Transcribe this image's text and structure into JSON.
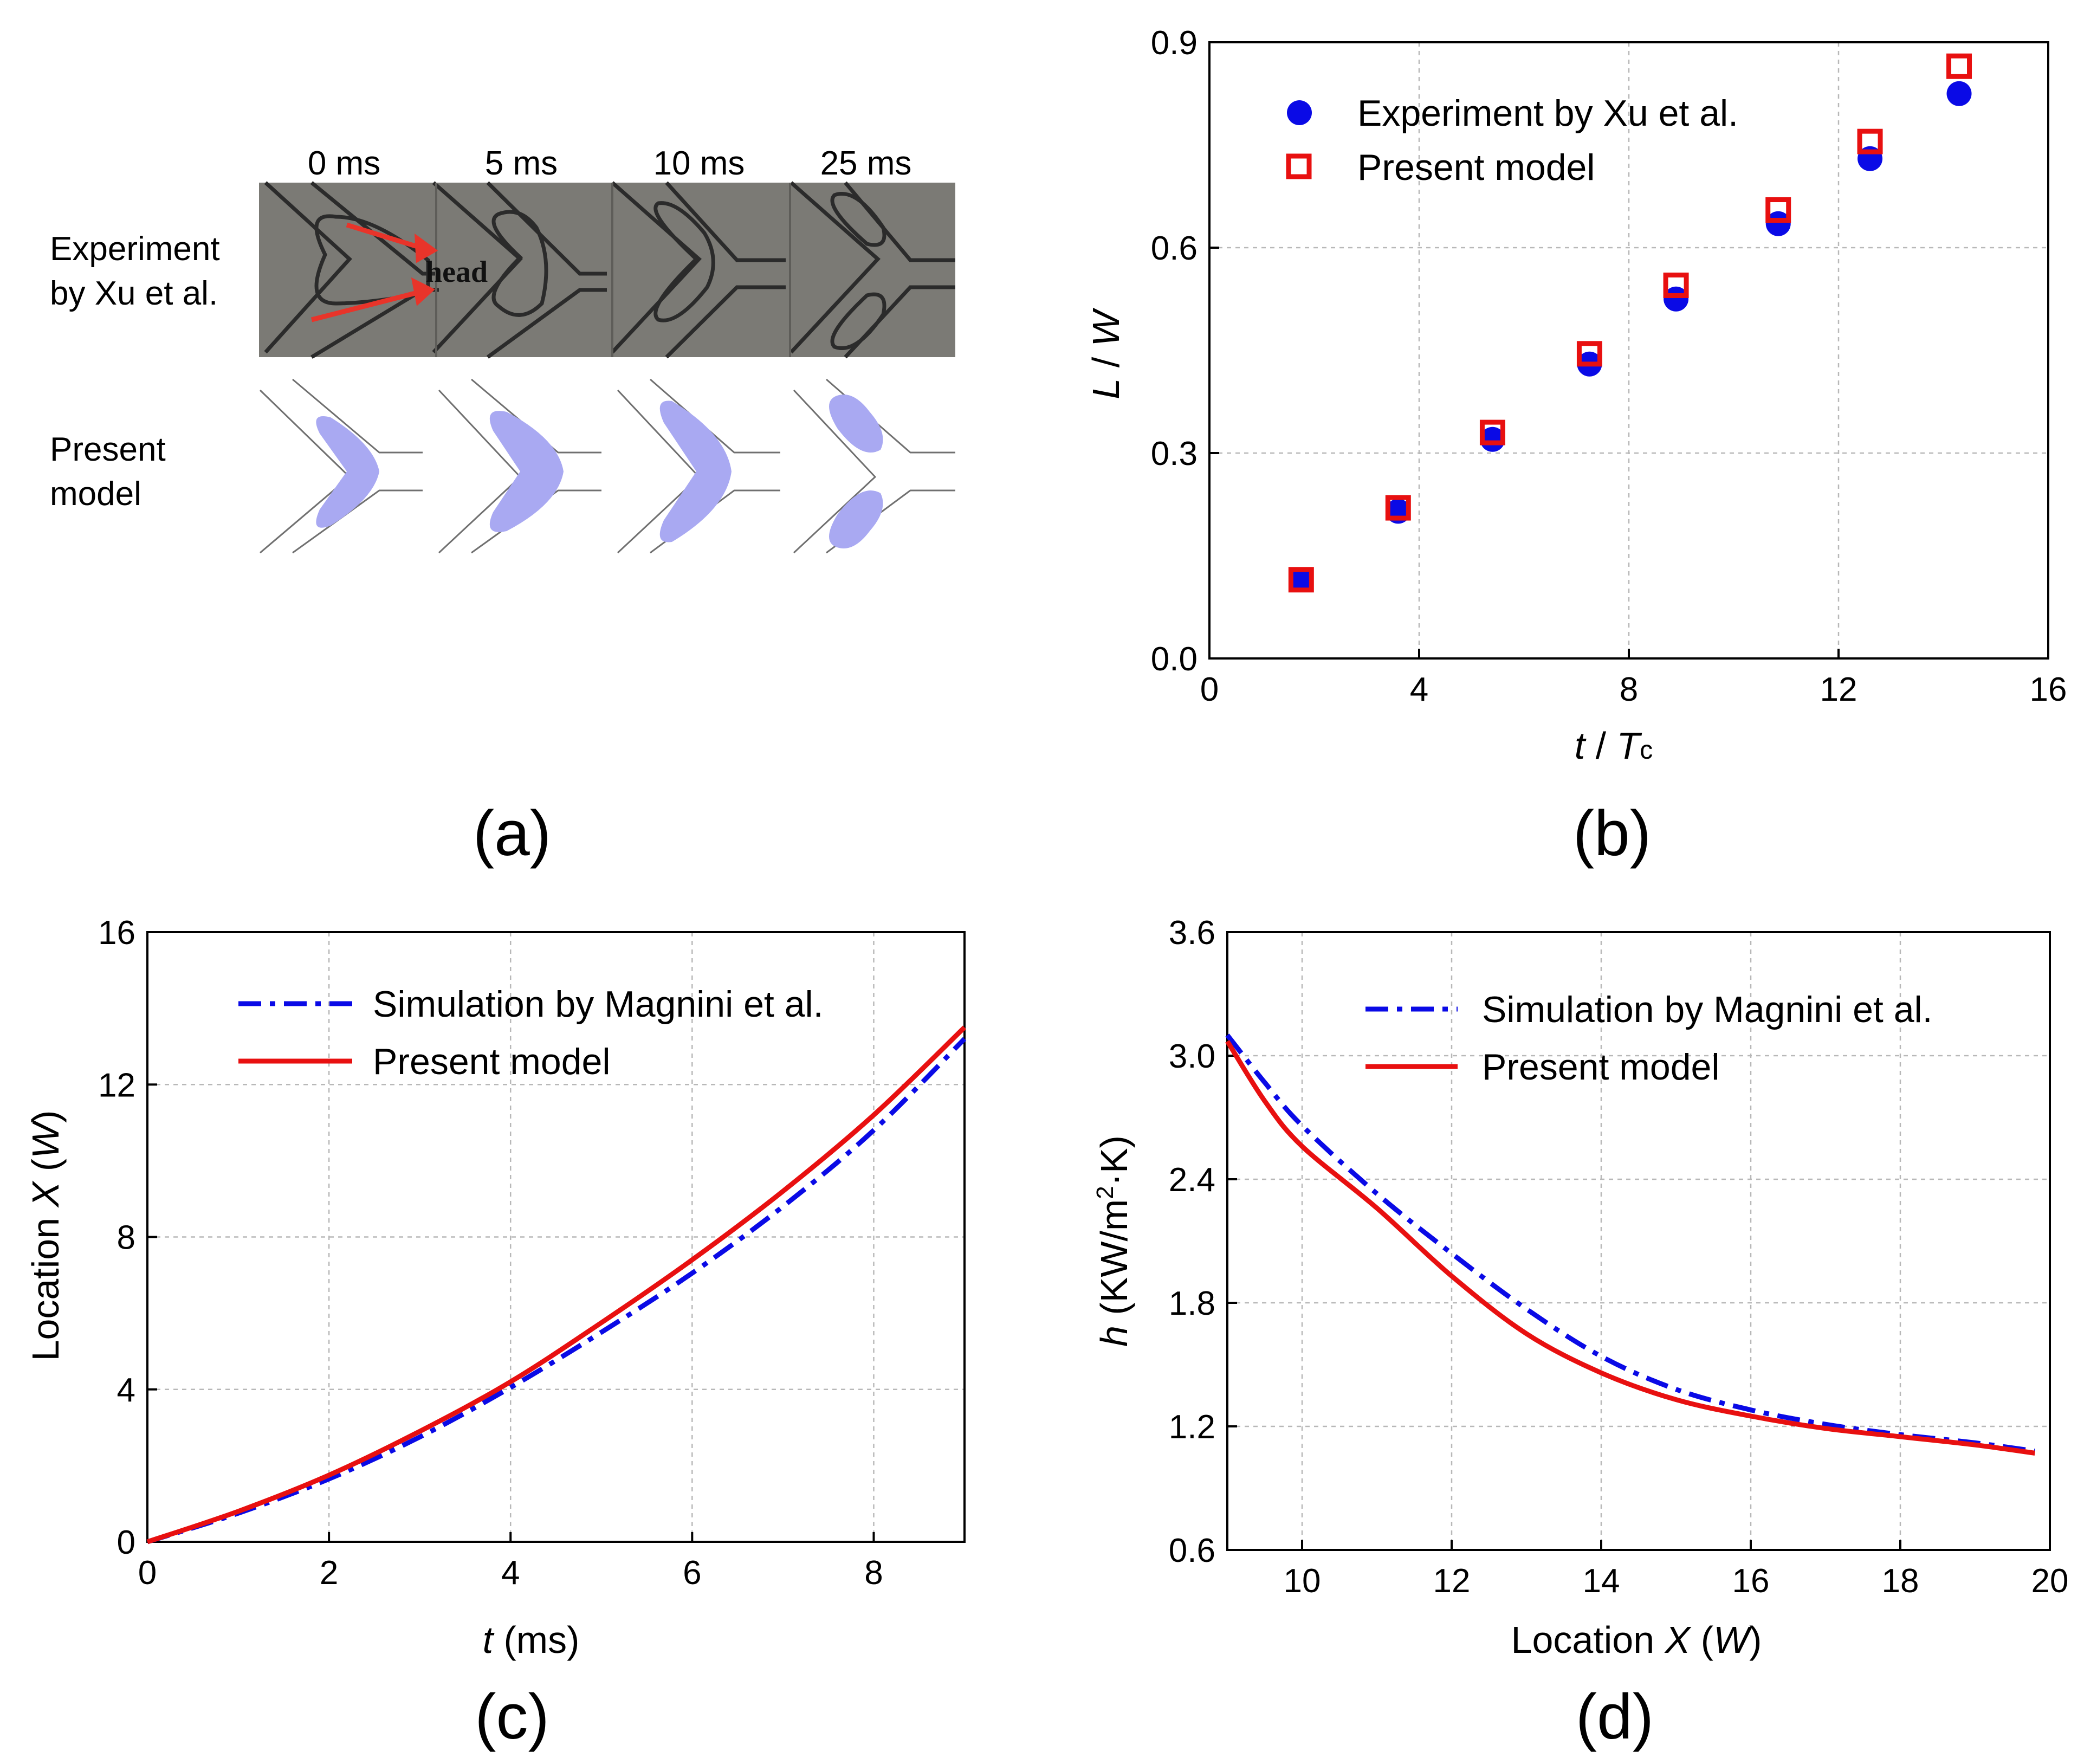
{
  "panel_labels": {
    "a": "(a)",
    "b": "(b)",
    "c": "(c)",
    "d": "(d)"
  },
  "panel_a": {
    "times": [
      "0 ms",
      "5 ms",
      "10 ms",
      "25 ms"
    ],
    "experiment_label_line1": "Experiment",
    "experiment_label_line2": "by  Xu et al.",
    "model_label_line1": "Present",
    "model_label_line2": "model",
    "head_label": "head",
    "colors": {
      "photo_bg": "#7b7a75",
      "droplet": "#a9a9f2",
      "arrow": "#e8342a"
    }
  },
  "chart_data": [
    {
      "type": "scatter",
      "panel": "b",
      "title": "",
      "xlabel_italic": "t",
      "xlabel_sep": " / ",
      "xlabel_italic2": "T",
      "xlabel_sub": "c",
      "ylabel_italic": "L",
      "ylabel_sep": " / ",
      "ylabel_italic2": "W",
      "xlim": [
        0,
        16
      ],
      "ylim": [
        0,
        0.9
      ],
      "xticks": [
        "0",
        "4",
        "8",
        "12",
        "16"
      ],
      "yticks": [
        "0.0",
        "0.3",
        "0.6",
        "0.9"
      ],
      "grid": true,
      "legend_position": "top-left",
      "series": [
        {
          "name": "Experiment by Xu et al.",
          "marker": "filled-circle",
          "color": "#0a0ae6",
          "x": [
            1.75,
            3.6,
            5.4,
            7.25,
            8.9,
            10.85,
            12.6,
            14.3
          ],
          "y": [
            0.115,
            0.215,
            0.32,
            0.43,
            0.525,
            0.635,
            0.73,
            0.825
          ]
        },
        {
          "name": "Present model",
          "marker": "open-square",
          "color": "#e81010",
          "x": [
            1.75,
            3.6,
            5.4,
            7.25,
            8.9,
            10.85,
            12.6,
            14.3
          ],
          "y": [
            0.115,
            0.22,
            0.33,
            0.445,
            0.545,
            0.655,
            0.755,
            0.865
          ]
        }
      ]
    },
    {
      "type": "line",
      "panel": "c",
      "title": "",
      "xlabel_italic": "t",
      "xlabel_rest": " (ms)",
      "ylabel_pre": "Location ",
      "ylabel_italic": "X",
      "ylabel_open": " (",
      "ylabel_italic2": "W",
      "ylabel_close": ")",
      "xlim": [
        0,
        9
      ],
      "ylim": [
        0,
        16
      ],
      "xticks": [
        "0",
        "2",
        "4",
        "6",
        "8"
      ],
      "yticks": [
        "0",
        "4",
        "8",
        "12",
        "16"
      ],
      "grid": true,
      "legend_position": "top-left",
      "series": [
        {
          "name": "Simulation by Magnini et al.",
          "style": "dash-dot",
          "color": "#0a0ae6",
          "x": [
            0,
            1,
            2,
            3,
            4,
            5,
            6,
            7,
            8,
            9
          ],
          "y": [
            0,
            0.75,
            1.65,
            2.75,
            4.05,
            5.5,
            7.05,
            8.8,
            10.8,
            13.2
          ]
        },
        {
          "name": "Present model",
          "style": "solid",
          "color": "#e81010",
          "x": [
            0,
            1,
            2,
            3,
            4,
            5,
            6,
            7,
            8,
            9
          ],
          "y": [
            0,
            0.8,
            1.75,
            2.9,
            4.2,
            5.75,
            7.4,
            9.2,
            11.2,
            13.5
          ]
        }
      ]
    },
    {
      "type": "line",
      "panel": "d",
      "title": "",
      "xlabel_pre": "Location ",
      "xlabel_italic": "X",
      "xlabel_open": " (",
      "xlabel_italic2": "W",
      "xlabel_close": ")",
      "ylabel_italic": "h",
      "ylabel_rest": " (KW/m",
      "ylabel_sup": "2",
      "ylabel_tail": "·K)",
      "xlim": [
        9,
        20
      ],
      "ylim": [
        0.6,
        3.6
      ],
      "xticks": [
        "10",
        "12",
        "14",
        "16",
        "18",
        "20"
      ],
      "yticks": [
        "0.6",
        "1.2",
        "1.8",
        "2.4",
        "3.0",
        "3.6"
      ],
      "grid": true,
      "legend_position": "top-right",
      "series": [
        {
          "name": "Simulation by Magnini et al.",
          "style": "dash-dot",
          "color": "#0a0ae6",
          "x": [
            9.0,
            9.5,
            10.0,
            11.0,
            12.0,
            13.0,
            14.0,
            15.0,
            16.0,
            17.0,
            18.0,
            19.0,
            19.8
          ],
          "y": [
            3.1,
            2.87,
            2.66,
            2.33,
            2.04,
            1.77,
            1.54,
            1.38,
            1.28,
            1.21,
            1.16,
            1.12,
            1.08
          ]
        },
        {
          "name": "Present model",
          "style": "solid",
          "color": "#e81010",
          "x": [
            9.0,
            9.5,
            10.0,
            11.0,
            12.0,
            13.0,
            14.0,
            15.0,
            16.0,
            17.0,
            18.0,
            19.0,
            19.8
          ],
          "y": [
            3.07,
            2.78,
            2.56,
            2.26,
            1.93,
            1.65,
            1.46,
            1.33,
            1.25,
            1.19,
            1.15,
            1.11,
            1.07
          ]
        }
      ]
    }
  ]
}
